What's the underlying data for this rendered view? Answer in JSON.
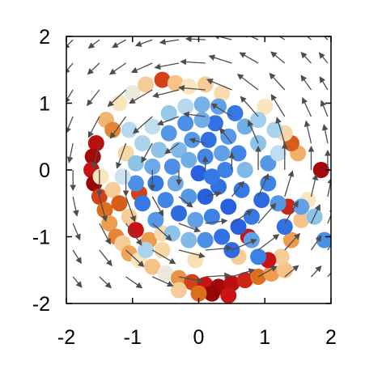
{
  "chart_data": {
    "type": "scatter",
    "title": "",
    "xlabel": "",
    "ylabel": "",
    "xlim": [
      -2,
      2
    ],
    "ylim": [
      -2,
      2
    ],
    "x_ticks": [
      -2,
      -1,
      0,
      1,
      2
    ],
    "y_ticks": [
      -2,
      -1,
      0,
      1,
      2
    ],
    "x_tick_labels": [
      "-2",
      "-1",
      "0",
      "1",
      "2"
    ],
    "y_tick_labels": [
      "-2",
      "-1",
      "0",
      "1",
      "2"
    ],
    "grid": false,
    "legend": "none",
    "marker": "filled circle",
    "colormap": "blue-white-red (cold inside the vortex, warm on the outer ring)",
    "colors": {
      "deep_blue": "#2b5fe0",
      "mid_blue": "#4a90e2",
      "light_blue": "#a8d4ea",
      "pale_blue": "#d6eef5",
      "lavender": "#dde2f5",
      "cream": "#fbe3b8",
      "light_orange": "#f5b574",
      "orange": "#e07b26",
      "red": "#cc1010",
      "dark_red": "#8b0000",
      "arrow": "#4d4d4d",
      "axis": "#000000"
    },
    "scatter_series": [
      {
        "color_group": "outer_ring_warm",
        "points": [
          {
            "x": -1.55,
            "y": 0.4,
            "c": 0.92
          },
          {
            "x": -1.6,
            "y": 0.2,
            "c": 0.95
          },
          {
            "x": -1.62,
            "y": 0.0,
            "c": 0.9
          },
          {
            "x": -1.58,
            "y": -0.2,
            "c": 0.97
          },
          {
            "x": -1.5,
            "y": -0.4,
            "c": 0.85
          },
          {
            "x": -1.42,
            "y": -0.6,
            "c": 0.8
          },
          {
            "x": -1.35,
            "y": -0.8,
            "c": 0.7
          },
          {
            "x": -1.25,
            "y": -1.0,
            "c": 0.75
          },
          {
            "x": -1.15,
            "y": -1.1,
            "c": 0.6
          },
          {
            "x": -1.05,
            "y": -1.25,
            "c": 0.68
          },
          {
            "x": -0.9,
            "y": -1.35,
            "c": 0.55
          },
          {
            "x": -0.7,
            "y": -1.45,
            "c": 0.62
          },
          {
            "x": -0.5,
            "y": -1.55,
            "c": 0.5
          },
          {
            "x": -0.3,
            "y": -1.62,
            "c": 0.72
          },
          {
            "x": -0.1,
            "y": -1.68,
            "c": 0.85
          },
          {
            "x": 0.1,
            "y": -1.72,
            "c": 0.9
          },
          {
            "x": 0.3,
            "y": -1.75,
            "c": 0.95
          },
          {
            "x": 0.5,
            "y": -1.7,
            "c": 0.92
          },
          {
            "x": 0.7,
            "y": -1.65,
            "c": 0.88
          },
          {
            "x": 0.9,
            "y": -1.6,
            "c": 0.8
          },
          {
            "x": 1.1,
            "y": -1.55,
            "c": 0.7
          },
          {
            "x": 1.3,
            "y": -1.5,
            "c": 0.62
          },
          {
            "x": 0.2,
            "y": -1.85,
            "c": 0.97
          },
          {
            "x": 0.45,
            "y": -1.88,
            "c": 0.9
          },
          {
            "x": 0.0,
            "y": -1.85,
            "c": 0.8
          },
          {
            "x": -0.3,
            "y": -1.8,
            "c": 0.6
          },
          {
            "x": -1.2,
            "y": 1.0,
            "c": 0.55
          },
          {
            "x": -1.0,
            "y": 1.15,
            "c": 0.5
          },
          {
            "x": -0.8,
            "y": 1.28,
            "c": 0.6
          },
          {
            "x": -0.55,
            "y": 1.35,
            "c": 0.85
          },
          {
            "x": -0.35,
            "y": 1.3,
            "c": 0.62
          },
          {
            "x": -0.15,
            "y": 1.25,
            "c": 0.55
          },
          {
            "x": 0.1,
            "y": 1.28,
            "c": 0.6
          },
          {
            "x": -1.4,
            "y": 0.75,
            "c": 0.65
          },
          {
            "x": -1.3,
            "y": 0.6,
            "c": 0.75
          },
          {
            "x": -1.48,
            "y": -0.1,
            "c": 0.55
          },
          {
            "x": -1.3,
            "y": -0.3,
            "c": 0.6
          },
          {
            "x": -1.2,
            "y": -0.5,
            "c": 0.82
          },
          {
            "x": -1.05,
            "y": -0.7,
            "c": 0.6
          },
          {
            "x": -0.95,
            "y": -0.9,
            "c": 0.9
          },
          {
            "x": -0.75,
            "y": -1.05,
            "c": 0.7
          },
          {
            "x": -0.55,
            "y": -1.2,
            "c": 0.58
          },
          {
            "x": 1.25,
            "y": -1.3,
            "c": 0.6
          },
          {
            "x": 1.4,
            "y": -1.05,
            "c": 0.7
          },
          {
            "x": 1.55,
            "y": -0.75,
            "c": 0.62
          },
          {
            "x": 1.65,
            "y": -0.45,
            "c": 0.55
          },
          {
            "x": 1.85,
            "y": 0.0,
            "c": 0.95
          },
          {
            "x": 1.5,
            "y": 0.25,
            "c": 0.66
          },
          {
            "x": 1.4,
            "y": 0.4,
            "c": 0.82
          },
          {
            "x": 1.3,
            "y": 0.55,
            "c": 0.58
          },
          {
            "x": 1.0,
            "y": 0.95,
            "c": 0.55
          },
          {
            "x": 0.35,
            "y": 1.15,
            "c": 0.57
          },
          {
            "x": -0.05,
            "y": -1.35,
            "c": 0.56
          },
          {
            "x": 0.6,
            "y": -1.3,
            "c": 0.6
          },
          {
            "x": 1.05,
            "y": -1.35,
            "c": 0.9
          },
          {
            "x": -1.1,
            "y": 0.25,
            "c": 0.58
          },
          {
            "x": -0.9,
            "y": -0.35,
            "c": 0.85
          },
          {
            "x": 1.35,
            "y": -0.55,
            "c": 0.88
          },
          {
            "x": 0.75,
            "y": -1.0,
            "c": 0.9
          },
          {
            "x": -0.55,
            "y": -0.95,
            "c": 0.57
          }
        ]
      },
      {
        "color_group": "inner_core_cool",
        "points": [
          {
            "x": 0.3,
            "y": 0.95,
            "c": 0.22
          },
          {
            "x": 0.55,
            "y": 0.85,
            "c": 0.12
          },
          {
            "x": 0.7,
            "y": 0.65,
            "c": 0.25
          },
          {
            "x": 0.9,
            "y": 0.4,
            "c": 0.3
          },
          {
            "x": 1.05,
            "y": 0.1,
            "c": 0.2
          },
          {
            "x": 1.05,
            "y": -0.2,
            "c": 0.15
          },
          {
            "x": 0.95,
            "y": -0.45,
            "c": 0.08
          },
          {
            "x": 0.8,
            "y": -0.7,
            "c": 0.12
          },
          {
            "x": 0.6,
            "y": -0.85,
            "c": 0.05
          },
          {
            "x": 0.35,
            "y": -1.0,
            "c": 0.1
          },
          {
            "x": 0.1,
            "y": -1.05,
            "c": 0.18
          },
          {
            "x": -0.15,
            "y": -1.05,
            "c": 0.28
          },
          {
            "x": -0.4,
            "y": -0.95,
            "c": 0.3
          },
          {
            "x": -0.65,
            "y": -0.75,
            "c": 0.2
          },
          {
            "x": -0.85,
            "y": -0.5,
            "c": 0.12
          },
          {
            "x": -0.95,
            "y": -0.2,
            "c": 0.18
          },
          {
            "x": -0.95,
            "y": 0.1,
            "c": 0.3
          },
          {
            "x": -0.85,
            "y": 0.4,
            "c": 0.36
          },
          {
            "x": -0.7,
            "y": 0.65,
            "c": 0.4
          },
          {
            "x": -0.45,
            "y": 0.85,
            "c": 0.32
          },
          {
            "x": -0.2,
            "y": 0.95,
            "c": 0.38
          },
          {
            "x": 0.05,
            "y": 0.98,
            "c": 0.26
          },
          {
            "x": 0.25,
            "y": 0.7,
            "c": 0.1
          },
          {
            "x": 0.45,
            "y": 0.5,
            "c": 0.2
          },
          {
            "x": 0.6,
            "y": 0.25,
            "c": 0.16
          },
          {
            "x": 0.7,
            "y": 0.0,
            "c": 0.28
          },
          {
            "x": 0.65,
            "y": -0.3,
            "c": 0.12
          },
          {
            "x": 0.45,
            "y": -0.55,
            "c": 0.05
          },
          {
            "x": 0.2,
            "y": -0.7,
            "c": 0.15
          },
          {
            "x": -0.05,
            "y": -0.75,
            "c": 0.22
          },
          {
            "x": -0.3,
            "y": -0.65,
            "c": 0.08
          },
          {
            "x": -0.5,
            "y": -0.45,
            "c": 0.16
          },
          {
            "x": -0.65,
            "y": -0.2,
            "c": 0.12
          },
          {
            "x": -0.7,
            "y": 0.05,
            "c": 0.24
          },
          {
            "x": -0.6,
            "y": 0.3,
            "c": 0.3
          },
          {
            "x": -0.45,
            "y": 0.55,
            "c": 0.2
          },
          {
            "x": -0.2,
            "y": 0.7,
            "c": 0.18
          },
          {
            "x": 0.05,
            "y": 0.75,
            "c": 0.25
          },
          {
            "x": 0.15,
            "y": 0.45,
            "c": 0.1
          },
          {
            "x": 0.35,
            "y": 0.25,
            "c": 0.22
          },
          {
            "x": 0.4,
            "y": 0.0,
            "c": 0.15
          },
          {
            "x": 0.3,
            "y": -0.25,
            "c": 0.1
          },
          {
            "x": 0.1,
            "y": -0.4,
            "c": 0.05
          },
          {
            "x": -0.15,
            "y": -0.4,
            "c": 0.2
          },
          {
            "x": -0.35,
            "y": -0.2,
            "c": 0.24
          },
          {
            "x": -0.4,
            "y": 0.05,
            "c": 0.18
          },
          {
            "x": -0.3,
            "y": 0.3,
            "c": 0.28
          },
          {
            "x": -0.1,
            "y": 0.45,
            "c": 0.2
          },
          {
            "x": 0.1,
            "y": 0.2,
            "c": 0.16
          },
          {
            "x": 0.0,
            "y": -0.05,
            "c": 0.05
          },
          {
            "x": -0.15,
            "y": 0.15,
            "c": 0.25
          },
          {
            "x": 0.2,
            "y": -0.1,
            "c": 0.12
          },
          {
            "x": 1.2,
            "y": -0.5,
            "c": 0.2
          },
          {
            "x": 1.3,
            "y": -0.85,
            "c": 0.1
          },
          {
            "x": 1.55,
            "y": -0.55,
            "c": 0.22
          },
          {
            "x": 1.9,
            "y": -1.05,
            "c": 0.18
          },
          {
            "x": 1.75,
            "y": -0.7,
            "c": 0.3
          },
          {
            "x": 0.5,
            "y": -1.2,
            "c": 0.08
          },
          {
            "x": 0.9,
            "y": -1.3,
            "c": 0.15
          },
          {
            "x": 0.8,
            "y": -1.05,
            "c": 0.22
          },
          {
            "x": -1.05,
            "y": 0.6,
            "c": 0.38
          },
          {
            "x": -1.15,
            "y": -0.1,
            "c": 0.42
          },
          {
            "x": 1.15,
            "y": 0.6,
            "c": 0.36
          },
          {
            "x": 1.2,
            "y": 0.25,
            "c": 0.4
          },
          {
            "x": 0.9,
            "y": 0.75,
            "c": 0.34
          },
          {
            "x": -0.8,
            "y": -1.2,
            "c": 0.36
          }
        ]
      }
    ],
    "vector_field": {
      "grid_x": [
        -1.9,
        -1.5,
        -1.1,
        -0.7,
        -0.3,
        0.1,
        0.5,
        0.9,
        1.3,
        1.7,
        1.95
      ],
      "grid_y": [
        -1.6,
        -1.2,
        -0.8,
        -0.4,
        0.0,
        0.4,
        0.8,
        1.2,
        1.6,
        1.95
      ],
      "description": "counter-clockwise circulation around origin; arrows shrink with distance from the vortex ring"
    }
  }
}
